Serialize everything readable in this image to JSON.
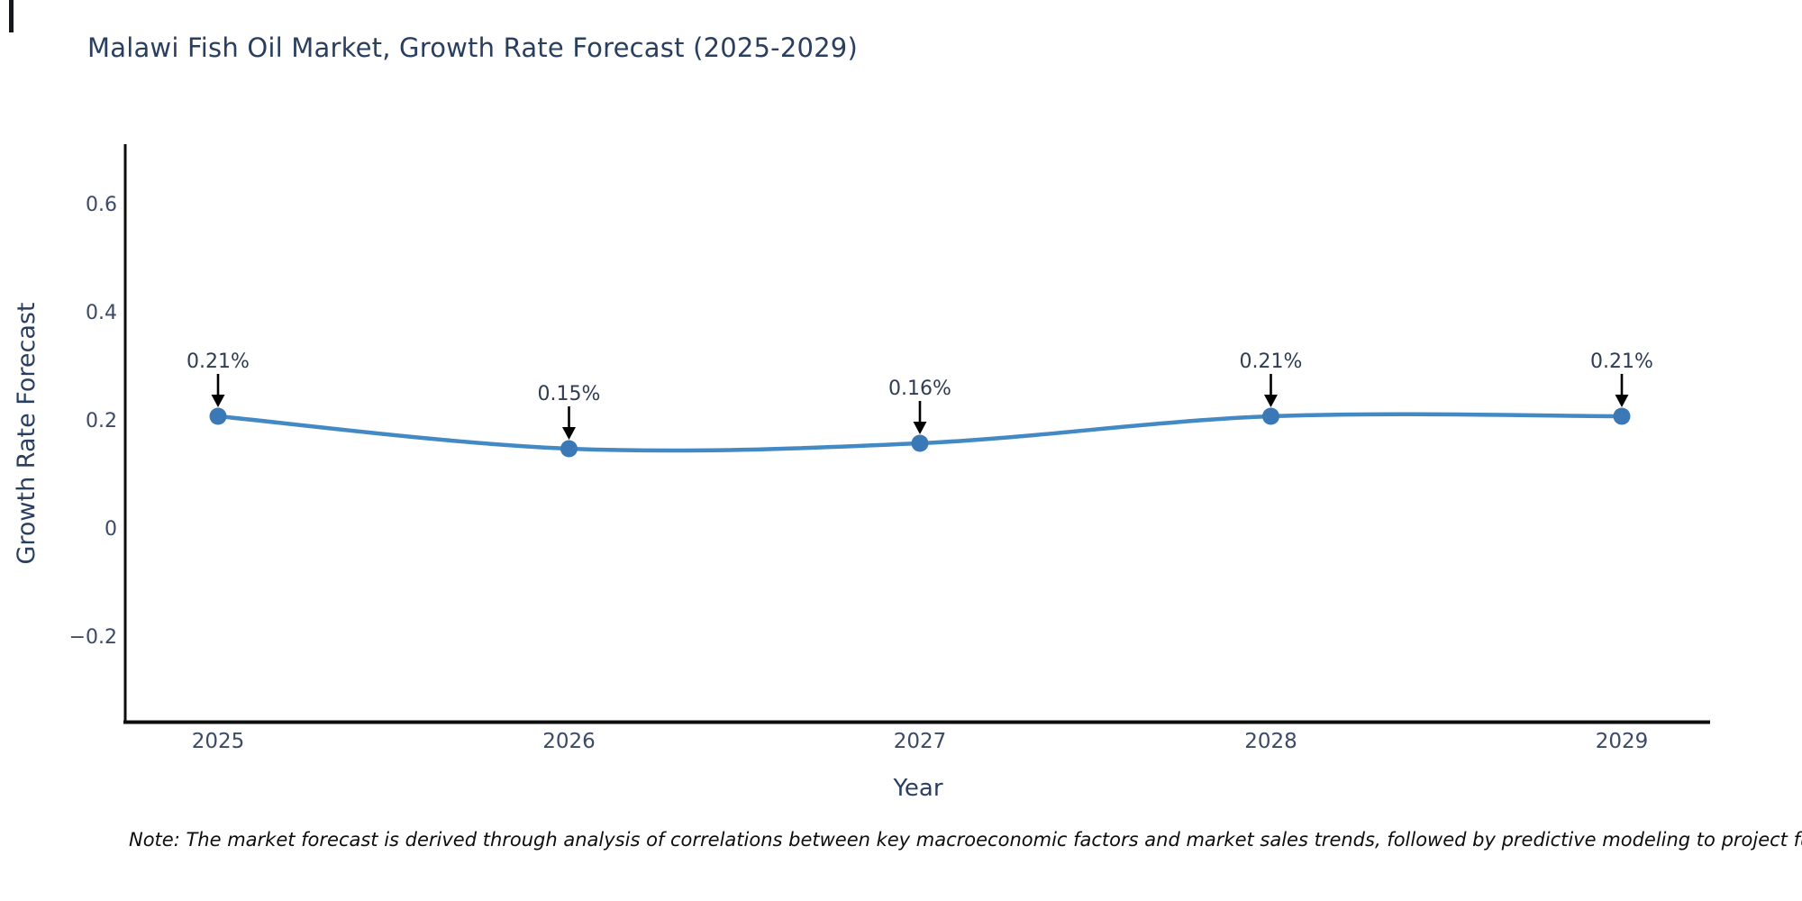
{
  "title": "Malawi Fish Oil Market, Growth Rate Forecast (2025-2029)",
  "note": "Note: The market forecast is derived through analysis of correlations between key macroeconomic factors and market sales trends, followed by predictive modeling to project future sa",
  "chart_data": {
    "type": "line",
    "title": "Malawi Fish Oil Market, Growth Rate Forecast (2025-2029)",
    "xlabel": "Year",
    "ylabel": "Growth Rate Forecast",
    "categories": [
      "2025",
      "2026",
      "2027",
      "2028",
      "2029"
    ],
    "values": [
      0.21,
      0.15,
      0.16,
      0.21,
      0.21
    ],
    "point_labels": [
      "0.21%",
      "0.15%",
      "0.16%",
      "0.21%",
      "0.21%"
    ],
    "yticks": [
      0.6,
      0.4,
      0.2,
      0,
      -0.2
    ],
    "ytick_labels": [
      "0.6",
      "0.4",
      "0.2",
      "0",
      "−0.2"
    ],
    "ylim": [
      -0.355,
      0.713
    ],
    "xlim_years": [
      2024.74,
      2029.25
    ],
    "grid": false,
    "legend": "none",
    "line_shape": "spline",
    "marker": "circle",
    "annotation_arrows": "down",
    "colors": {
      "line": "#4389c4",
      "marker": "#3a79b5",
      "axis_spine": "#0d0d0d",
      "title_text": "#2a3f5f",
      "tick_text": "#3b4a66",
      "arrow": "#000000",
      "background": "#ffffff"
    }
  }
}
